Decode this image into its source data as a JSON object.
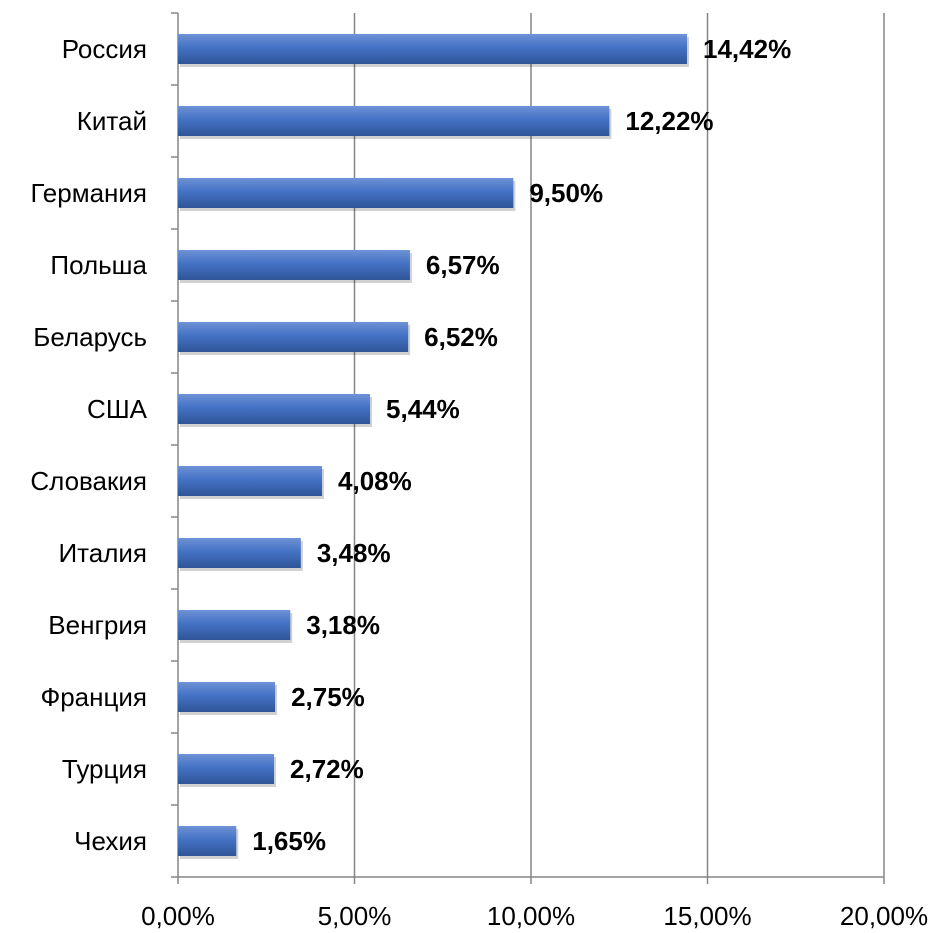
{
  "chart_data": {
    "type": "bar",
    "orientation": "horizontal",
    "categories": [
      "Россия",
      "Китай",
      "Германия",
      "Польша",
      "Беларусь",
      "США",
      "Словакия",
      "Италия",
      "Венгрия",
      "Франция",
      "Турция",
      "Чехия"
    ],
    "values": [
      14.42,
      12.22,
      9.5,
      6.57,
      6.52,
      5.44,
      4.08,
      3.48,
      3.18,
      2.75,
      2.72,
      1.65
    ],
    "data_labels": [
      "14,42%",
      "12,22%",
      "9,50%",
      "6,57%",
      "6,52%",
      "5,44%",
      "4,08%",
      "3,48%",
      "3,18%",
      "2,75%",
      "2,72%",
      "1,65%"
    ],
    "x_ticks": [
      "0,00%",
      "5,00%",
      "10,00%",
      "15,00%",
      "20,00%"
    ],
    "xlim": [
      0,
      20
    ],
    "title": "",
    "xlabel": "",
    "ylabel": "",
    "grid": "vertical",
    "legend": "none",
    "colors": {
      "bar": "#4472C4",
      "bar_dark": "#2F5597",
      "bar_light": "#6E93D6",
      "grid": "#868686",
      "axis": "#868686"
    }
  }
}
